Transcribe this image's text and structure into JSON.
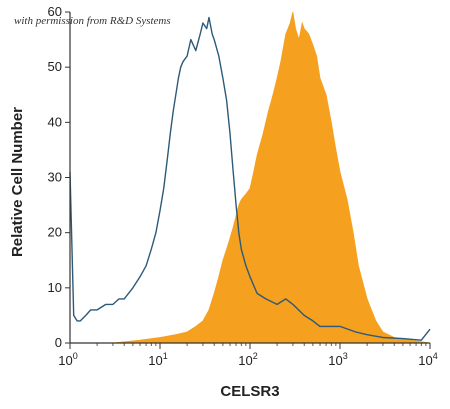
{
  "credit": "with permission from R&D Systems",
  "chart_data": {
    "type": "area",
    "xlabel": "CELSR3",
    "ylabel": "Relative Cell Number",
    "x_scale": "log",
    "xlim": [
      1,
      10000
    ],
    "ylim": [
      0,
      60
    ],
    "x_ticks": [
      {
        "value": 1,
        "base": "10",
        "exp": "0"
      },
      {
        "value": 10,
        "base": "10",
        "exp": "1"
      },
      {
        "value": 100,
        "base": "10",
        "exp": "2"
      },
      {
        "value": 1000,
        "base": "10",
        "exp": "3"
      },
      {
        "value": 10000,
        "base": "10",
        "exp": "4"
      }
    ],
    "y_ticks": [
      0,
      10,
      20,
      30,
      40,
      50,
      60
    ],
    "grid": false,
    "legend": "none",
    "series": [
      {
        "style": "outline",
        "color": "#2c5a78",
        "x": [
          1,
          1.1,
          1.2,
          1.3,
          1.5,
          1.7,
          2,
          2.5,
          3,
          3.5,
          4,
          5,
          6,
          7,
          8,
          9,
          10,
          11,
          12,
          13,
          14,
          15,
          16,
          17,
          18,
          20,
          22,
          25,
          28,
          30,
          33,
          35,
          38,
          40,
          45,
          50,
          55,
          60,
          65,
          70,
          75,
          80,
          90,
          100,
          120,
          150,
          200,
          250,
          300,
          400,
          500,
          600,
          800,
          1000,
          1500,
          2000,
          3000,
          5000,
          8000,
          10000
        ],
        "y": [
          31,
          5,
          4,
          4,
          5,
          6,
          6,
          7,
          7,
          8,
          8,
          10,
          12,
          14,
          17,
          20,
          24,
          28,
          33,
          38,
          42,
          45,
          48,
          50,
          51,
          52,
          55,
          53,
          56,
          58,
          57,
          59,
          56,
          55,
          52,
          48,
          44,
          38,
          31,
          25,
          20,
          17,
          14,
          12,
          9,
          8,
          7,
          8,
          7,
          5,
          4,
          3,
          3,
          3,
          2,
          1.5,
          1,
          0.8,
          0.5,
          2.5
        ]
      },
      {
        "style": "filled",
        "color": "#f5a01f",
        "x": [
          1,
          3,
          6,
          10,
          15,
          20,
          25,
          30,
          35,
          40,
          45,
          50,
          55,
          60,
          65,
          70,
          75,
          80,
          90,
          100,
          110,
          120,
          140,
          160,
          180,
          200,
          220,
          250,
          280,
          300,
          320,
          350,
          380,
          400,
          450,
          500,
          550,
          600,
          700,
          800,
          900,
          1000,
          1200,
          1400,
          1600,
          2000,
          2500,
          3000,
          4000,
          6000,
          10000
        ],
        "y": [
          0,
          0,
          0.5,
          1,
          1.5,
          2,
          3,
          4,
          6,
          9,
          12,
          15,
          17,
          19,
          21,
          23,
          25,
          26,
          27,
          28,
          31,
          34,
          38,
          42,
          45,
          48,
          51,
          56,
          58,
          60,
          57,
          55,
          58,
          57,
          56,
          54,
          52,
          48,
          45,
          40,
          35,
          31,
          26,
          20,
          14,
          8,
          4,
          2,
          1,
          0.5,
          0
        ]
      }
    ]
  }
}
